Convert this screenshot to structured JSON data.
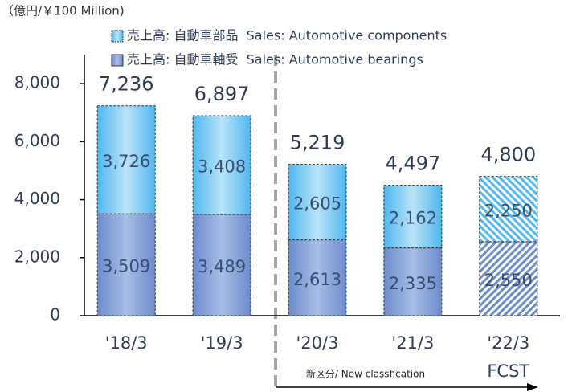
{
  "chart_data": {
    "type": "stacked_bar",
    "unit_label": "（億円/￥100 Million)",
    "categories": [
      "'18/3",
      "'19/3",
      "'20/3",
      "'21/3",
      "'22/3"
    ],
    "category_notes": [
      null,
      null,
      null,
      null,
      "FCST"
    ],
    "series": [
      {
        "name": "売上高: 自動車軸受  Sales: Automotive bearings",
        "color": "#7a9ad6",
        "values": [
          3509,
          3489,
          2613,
          2335,
          2550
        ],
        "value_labels": [
          "3,509",
          "3,489",
          "2,613",
          "2,335",
          "2,550"
        ]
      },
      {
        "name": "売上高: 自動車部品  Sales: Automotive components",
        "color": "#5cc0ef",
        "values": [
          3726,
          3408,
          2605,
          2162,
          2250
        ],
        "value_labels": [
          "3,726",
          "3,408",
          "2,605",
          "2,162",
          "2,250"
        ]
      }
    ],
    "totals": [
      7236,
      6897,
      5219,
      4497,
      4800
    ],
    "total_labels": [
      "7,236",
      "6,897",
      "5,219",
      "4,497",
      "4,800"
    ],
    "hatched": [
      false,
      false,
      false,
      false,
      true
    ],
    "annotation": "新区分/ New classfication",
    "ylim": [
      0,
      9000
    ],
    "yticks": [
      0,
      {
        "value": 2000,
        "label": "2,000"
      },
      {
        "value": 4000,
        "label": "4,000"
      },
      {
        "value": 6000,
        "label": "6,000"
      },
      {
        "value": 8000,
        "label": "8,000"
      }
    ]
  }
}
